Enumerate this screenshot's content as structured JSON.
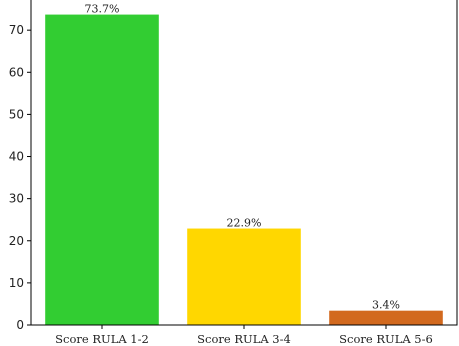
{
  "chart_data": {
    "type": "bar",
    "categories": [
      "Score RULA 1-2",
      "Score RULA 3-4",
      "Score RULA 5-6"
    ],
    "values": [
      73.7,
      22.9,
      3.4
    ],
    "data_labels": [
      "73.7%",
      "22.9%",
      "3.4%"
    ],
    "colors": [
      "#32cd32",
      "#ffd700",
      "#d2691e"
    ],
    "title": "",
    "xlabel": "",
    "ylabel": "",
    "ylim": [
      0,
      77.4
    ],
    "yticks": [
      0,
      10,
      20,
      30,
      40,
      50,
      60,
      70
    ],
    "grid": false,
    "legend": "none"
  }
}
